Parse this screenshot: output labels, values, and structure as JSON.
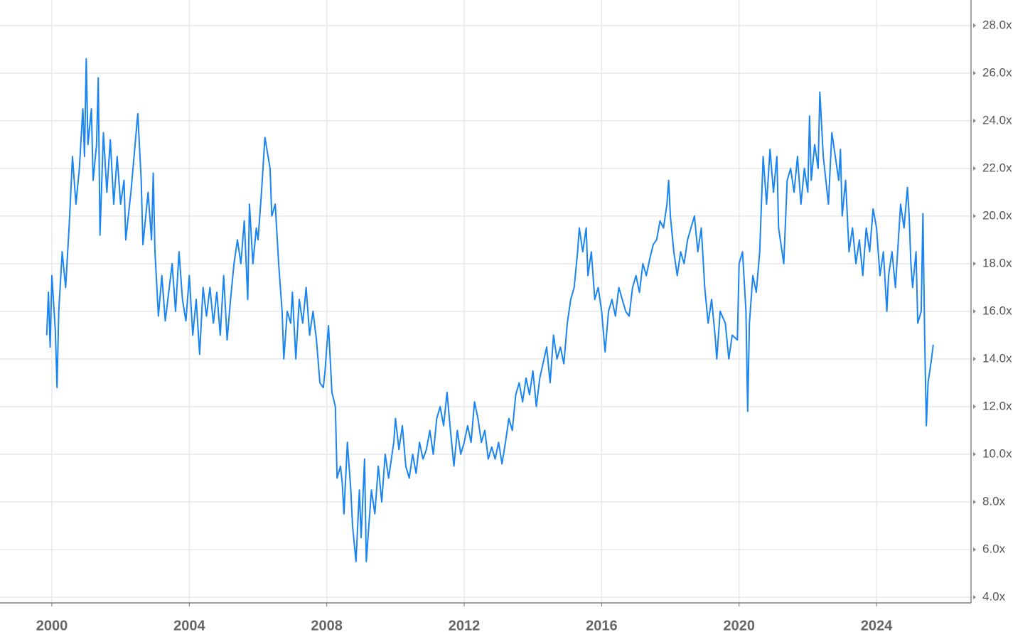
{
  "chart_data": {
    "type": "line",
    "color": "#1a85f0",
    "grid": true,
    "xlim": [
      1998.49,
      2026.75
    ],
    "ylim": [
      3.76,
      29.07
    ],
    "xticks": [
      2000,
      2004,
      2008,
      2012,
      2016,
      2020,
      2024
    ],
    "yticks": [
      {
        "value": 4,
        "label": "4.0x"
      },
      {
        "value": 6,
        "label": "6.0x"
      },
      {
        "value": 8,
        "label": "8.0x"
      },
      {
        "value": 10,
        "label": "10.0x"
      },
      {
        "value": 12,
        "label": "12.0x"
      },
      {
        "value": 14,
        "label": "14.0x"
      },
      {
        "value": 16,
        "label": "16.0x"
      },
      {
        "value": 18,
        "label": "18.0x"
      },
      {
        "value": 20,
        "label": "20.0x"
      },
      {
        "value": 22,
        "label": "22.0x"
      },
      {
        "value": 24,
        "label": "24.0x"
      },
      {
        "value": 26,
        "label": "26.0x"
      },
      {
        "value": 28,
        "label": "28.0x"
      }
    ],
    "x": [
      1999.85,
      1999.9,
      1999.95,
      2000.0,
      2000.1,
      2000.15,
      2000.2,
      2000.3,
      2000.4,
      2000.5,
      2000.6,
      2000.7,
      2000.8,
      2000.9,
      2000.95,
      2001.0,
      2001.05,
      2001.15,
      2001.2,
      2001.3,
      2001.35,
      2001.4,
      2001.5,
      2001.6,
      2001.7,
      2001.8,
      2001.9,
      2002.0,
      2002.1,
      2002.15,
      2002.3,
      2002.5,
      2002.6,
      2002.65,
      2002.8,
      2002.9,
      2002.95,
      2003.0,
      2003.1,
      2003.2,
      2003.3,
      2003.5,
      2003.6,
      2003.7,
      2003.8,
      2003.9,
      2004.0,
      2004.1,
      2004.2,
      2004.3,
      2004.4,
      2004.5,
      2004.6,
      2004.7,
      2004.8,
      2004.9,
      2005.0,
      2005.1,
      2005.2,
      2005.3,
      2005.4,
      2005.5,
      2005.6,
      2005.7,
      2005.75,
      2005.85,
      2005.95,
      2006.0,
      2006.1,
      2006.2,
      2006.35,
      2006.4,
      2006.5,
      2006.6,
      2006.7,
      2006.75,
      2006.85,
      2006.95,
      2007.0,
      2007.1,
      2007.2,
      2007.3,
      2007.4,
      2007.5,
      2007.6,
      2007.7,
      2007.8,
      2007.9,
      2007.95,
      2008.0,
      2008.05,
      2008.1,
      2008.15,
      2008.25,
      2008.3,
      2008.4,
      2008.45,
      2008.5,
      2008.6,
      2008.7,
      2008.75,
      2008.85,
      2008.95,
      2009.0,
      2009.1,
      2009.15,
      2009.3,
      2009.4,
      2009.5,
      2009.6,
      2009.7,
      2009.8,
      2009.95,
      2010.0,
      2010.1,
      2010.2,
      2010.3,
      2010.4,
      2010.5,
      2010.6,
      2010.7,
      2010.8,
      2010.9,
      2011.0,
      2011.1,
      2011.2,
      2011.3,
      2011.4,
      2011.5,
      2011.6,
      2011.7,
      2011.8,
      2011.9,
      2012.0,
      2012.1,
      2012.2,
      2012.3,
      2012.4,
      2012.5,
      2012.6,
      2012.7,
      2012.8,
      2012.9,
      2013.0,
      2013.1,
      2013.2,
      2013.3,
      2013.4,
      2013.5,
      2013.6,
      2013.7,
      2013.8,
      2013.9,
      2014.0,
      2014.1,
      2014.2,
      2014.4,
      2014.5,
      2014.6,
      2014.7,
      2014.8,
      2014.9,
      2015.0,
      2015.1,
      2015.2,
      2015.3,
      2015.35,
      2015.45,
      2015.55,
      2015.6,
      2015.7,
      2015.8,
      2015.9,
      2016.0,
      2016.1,
      2016.2,
      2016.3,
      2016.4,
      2016.5,
      2016.6,
      2016.7,
      2016.8,
      2016.9,
      2017.0,
      2017.1,
      2017.2,
      2017.3,
      2017.4,
      2017.5,
      2017.6,
      2017.7,
      2017.8,
      2017.9,
      2017.95,
      2018.0,
      2018.1,
      2018.2,
      2018.3,
      2018.4,
      2018.5,
      2018.6,
      2018.7,
      2018.8,
      2018.9,
      2019.0,
      2019.1,
      2019.2,
      2019.3,
      2019.35,
      2019.45,
      2019.6,
      2019.7,
      2019.8,
      2019.95,
      2020.0,
      2020.1,
      2020.2,
      2020.25,
      2020.3,
      2020.4,
      2020.5,
      2020.6,
      2020.7,
      2020.8,
      2020.9,
      2021.0,
      2021.1,
      2021.15,
      2021.3,
      2021.4,
      2021.5,
      2021.6,
      2021.7,
      2021.8,
      2021.9,
      2022.0,
      2022.05,
      2022.1,
      2022.2,
      2022.3,
      2022.35,
      2022.45,
      2022.6,
      2022.7,
      2022.8,
      2022.9,
      2022.95,
      2023.0,
      2023.1,
      2023.2,
      2023.3,
      2023.4,
      2023.5,
      2023.6,
      2023.7,
      2023.8,
      2023.9,
      2024.0,
      2024.1,
      2024.2,
      2024.3,
      2024.35,
      2024.45,
      2024.55,
      2024.7,
      2024.8,
      2024.9,
      2024.95,
      2025.0,
      2025.05,
      2025.15,
      2025.2,
      2025.3,
      2025.35,
      2025.4,
      2025.45,
      2025.5,
      2025.6,
      2025.65
    ],
    "values": [
      15.0,
      16.8,
      14.5,
      17.5,
      15.2,
      12.8,
      16.0,
      18.5,
      17.0,
      19.5,
      22.5,
      20.5,
      22.0,
      24.5,
      22.5,
      26.6,
      23.0,
      24.5,
      21.5,
      23.0,
      25.8,
      19.2,
      23.5,
      21.0,
      23.2,
      20.5,
      22.5,
      20.5,
      21.5,
      19.0,
      21.0,
      24.3,
      21.5,
      18.8,
      21.0,
      19.0,
      21.8,
      18.5,
      15.8,
      17.5,
      15.6,
      18.0,
      16.0,
      18.5,
      16.5,
      15.6,
      17.5,
      15.0,
      16.5,
      14.2,
      17.0,
      15.8,
      17.0,
      15.5,
      16.8,
      15.0,
      17.5,
      14.8,
      16.5,
      18.0,
      19.0,
      18.0,
      19.8,
      16.5,
      20.5,
      18.0,
      19.5,
      19.0,
      21.0,
      23.3,
      22.0,
      20.0,
      20.5,
      18.0,
      16.0,
      14.0,
      16.0,
      15.5,
      16.8,
      14.0,
      16.5,
      15.5,
      17.0,
      15.0,
      16.0,
      14.8,
      13.0,
      12.8,
      13.5,
      14.5,
      15.4,
      14.0,
      12.6,
      12.0,
      9.0,
      9.5,
      8.8,
      7.5,
      10.5,
      8.5,
      7.0,
      5.5,
      8.5,
      6.5,
      9.8,
      5.5,
      8.5,
      7.5,
      9.5,
      8.0,
      10.0,
      9.0,
      10.5,
      11.5,
      10.2,
      11.2,
      9.5,
      9.0,
      10.0,
      9.2,
      10.5,
      9.8,
      10.2,
      11.0,
      10.0,
      11.5,
      12.0,
      11.2,
      12.6,
      11.0,
      9.5,
      11.0,
      10.0,
      10.5,
      11.2,
      10.5,
      12.2,
      11.5,
      10.5,
      11.0,
      9.8,
      10.3,
      9.8,
      10.5,
      9.6,
      10.5,
      11.5,
      11.0,
      12.5,
      13.0,
      12.2,
      13.2,
      12.5,
      13.5,
      12.0,
      13.2,
      14.5,
      13.0,
      15.0,
      14.0,
      14.5,
      13.8,
      15.5,
      16.5,
      17.0,
      18.5,
      19.5,
      18.5,
      19.5,
      17.5,
      18.5,
      16.5,
      17.0,
      16.0,
      14.3,
      16.0,
      16.5,
      15.8,
      17.0,
      16.5,
      16.0,
      15.8,
      17.0,
      17.5,
      16.8,
      18.0,
      17.5,
      18.2,
      18.8,
      19.0,
      19.8,
      19.5,
      20.5,
      21.5,
      20.0,
      18.5,
      17.5,
      18.5,
      18.0,
      19.0,
      19.5,
      20.0,
      18.5,
      19.5,
      17.0,
      15.5,
      16.5,
      15.0,
      14.0,
      16.0,
      15.5,
      14.0,
      15.0,
      14.8,
      18.0,
      18.5,
      16.0,
      11.8,
      15.5,
      17.5,
      16.8,
      18.5,
      22.5,
      20.5,
      22.8,
      21.0,
      22.5,
      19.5,
      18.0,
      21.5,
      22.0,
      21.0,
      22.5,
      20.5,
      22.0,
      21.0,
      24.2,
      21.5,
      23.0,
      22.0,
      25.2,
      22.5,
      20.5,
      23.5,
      22.5,
      21.5,
      22.8,
      20.0,
      21.5,
      18.5,
      19.5,
      18.0,
      19.0,
      17.5,
      19.5,
      18.5,
      20.3,
      19.5,
      17.5,
      18.5,
      16.0,
      17.5,
      18.5,
      17.0,
      20.5,
      19.5,
      21.2,
      20.0,
      18.0,
      17.0,
      18.5,
      15.5,
      16.0,
      20.1,
      15.0,
      11.2,
      13.0,
      14.0,
      14.6
    ]
  }
}
